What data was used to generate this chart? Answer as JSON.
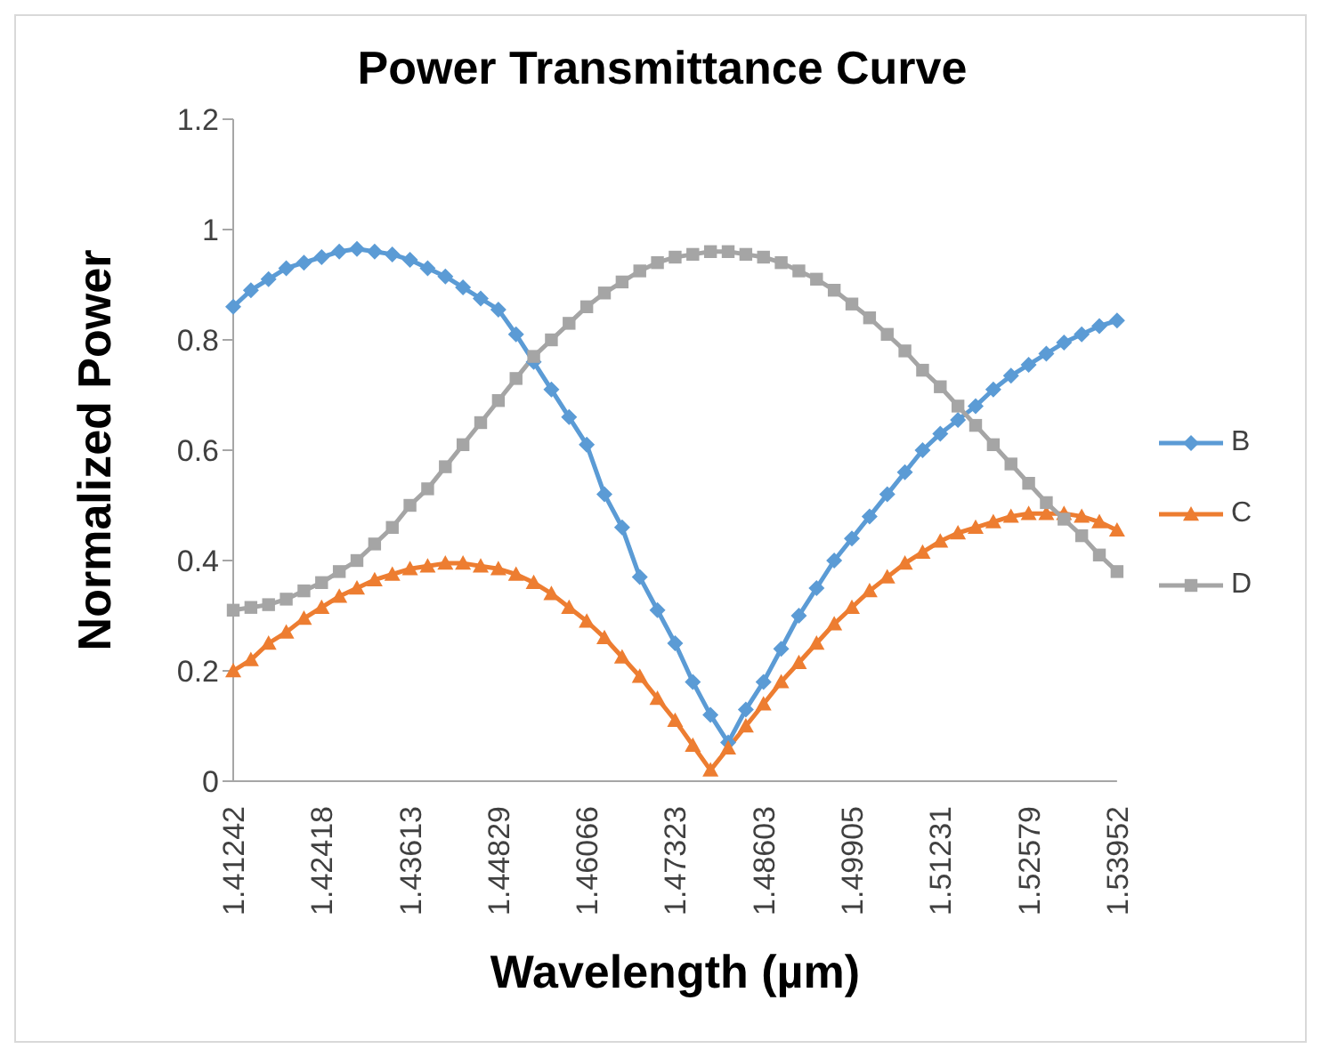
{
  "chart_data": {
    "type": "line",
    "title": "Power Transmittance Curve",
    "xlabel": "Wavelength (µm)",
    "ylabel": "Normalized Power",
    "categories": [
      "1.41242",
      null,
      null,
      null,
      null,
      "1.42418",
      null,
      null,
      null,
      null,
      "1.43613",
      null,
      null,
      null,
      null,
      "1.44829",
      null,
      null,
      null,
      null,
      "1.46066",
      null,
      null,
      null,
      null,
      "1.47323",
      null,
      null,
      null,
      null,
      "1.48603",
      null,
      null,
      null,
      null,
      "1.49905",
      null,
      null,
      null,
      null,
      "1.51231",
      null,
      null,
      null,
      null,
      "1.52579",
      null,
      null,
      null,
      null,
      "1.53952"
    ],
    "series": [
      {
        "name": "B",
        "color": "#5b9bd5",
        "marker": "diamond",
        "values": [
          0.86,
          0.89,
          0.91,
          0.93,
          0.94,
          0.95,
          0.96,
          0.965,
          0.96,
          0.955,
          0.945,
          0.93,
          0.915,
          0.895,
          0.875,
          0.855,
          0.81,
          0.76,
          0.71,
          0.66,
          0.61,
          0.52,
          0.46,
          0.37,
          0.31,
          0.25,
          0.18,
          0.12,
          0.07,
          0.13,
          0.18,
          0.24,
          0.3,
          0.35,
          0.4,
          0.44,
          0.48,
          0.52,
          0.56,
          0.6,
          0.63,
          0.655,
          0.68,
          0.71,
          0.735,
          0.755,
          0.775,
          0.795,
          0.81,
          0.825,
          0.835
        ]
      },
      {
        "name": "C",
        "color": "#ed7d31",
        "marker": "triangle",
        "values": [
          0.2,
          0.22,
          0.25,
          0.27,
          0.295,
          0.315,
          0.335,
          0.35,
          0.365,
          0.375,
          0.385,
          0.39,
          0.395,
          0.395,
          0.39,
          0.385,
          0.375,
          0.36,
          0.34,
          0.315,
          0.29,
          0.26,
          0.225,
          0.19,
          0.15,
          0.11,
          0.065,
          0.02,
          0.06,
          0.1,
          0.14,
          0.18,
          0.215,
          0.25,
          0.285,
          0.315,
          0.345,
          0.37,
          0.395,
          0.415,
          0.435,
          0.45,
          0.46,
          0.47,
          0.48,
          0.485,
          0.485,
          0.485,
          0.48,
          0.47,
          0.455
        ]
      },
      {
        "name": "D",
        "color": "#a5a5a5",
        "marker": "square",
        "values": [
          0.31,
          0.315,
          0.32,
          0.33,
          0.345,
          0.36,
          0.38,
          0.4,
          0.43,
          0.46,
          0.5,
          0.53,
          0.57,
          0.61,
          0.65,
          0.69,
          0.73,
          0.77,
          0.8,
          0.83,
          0.86,
          0.885,
          0.905,
          0.925,
          0.94,
          0.95,
          0.955,
          0.96,
          0.96,
          0.955,
          0.95,
          0.94,
          0.925,
          0.91,
          0.89,
          0.865,
          0.84,
          0.81,
          0.78,
          0.745,
          0.715,
          0.68,
          0.645,
          0.61,
          0.575,
          0.54,
          0.505,
          0.475,
          0.445,
          0.41,
          0.38
        ]
      }
    ],
    "ylim": [
      0,
      1.2
    ],
    "yticks": [
      0,
      0.2,
      0.4,
      0.6,
      0.8,
      1,
      1.2
    ],
    "grid": false,
    "legend": "right",
    "line_style": "solid"
  }
}
